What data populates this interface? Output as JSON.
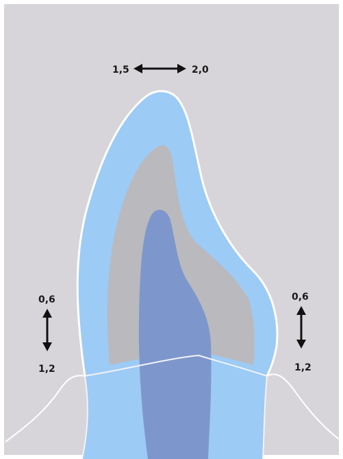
{
  "labels": {
    "incisal_min": "1,5",
    "incisal_max": "2,0",
    "left_min": "0,6",
    "left_max": "1,2",
    "right_min": "0,6",
    "right_max": "1,2"
  },
  "colors": {
    "background": "#d8d5da",
    "crown_outer": "#9ccbf5",
    "crown_middle": "#b9b9be",
    "core": "#7d97cc",
    "outline": "#ffffff",
    "arrow": "#111111"
  },
  "icons": {
    "top_arrow": "double-horizontal-arrow-icon",
    "left_arrow": "double-vertical-arrow-icon",
    "right_arrow": "double-vertical-arrow-icon"
  }
}
